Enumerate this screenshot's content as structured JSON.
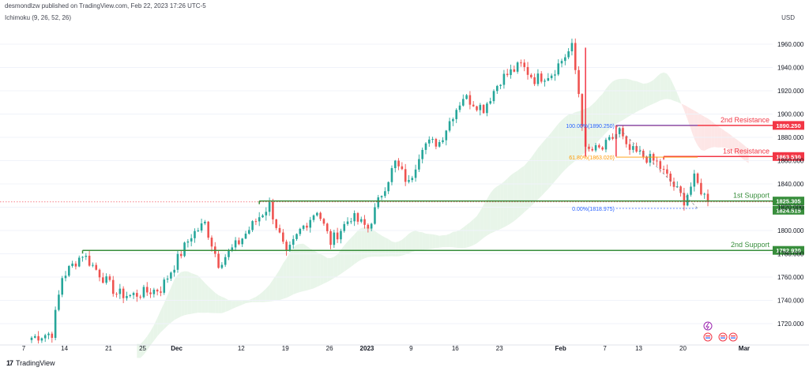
{
  "header": {
    "text": "desmondlzw published on TradingView.com, Feb 22, 2023 17:26 UTC-5"
  },
  "indicator": {
    "label": "Ichimoku (9, 26, 52, 26)"
  },
  "currency": "USD",
  "footer": {
    "brand": "TradingView"
  },
  "colors": {
    "up": "#26a69a",
    "down": "#ef5350",
    "resistance": "#f23645",
    "support": "#388e3c",
    "fib_mid": "#ff9800",
    "fib_label": "#2962ff",
    "cloud_green": "#e8f5e9",
    "cloud_red": "#fde6e6"
  },
  "chart_data": {
    "type": "candlestick",
    "y_axis": {
      "min": 1700,
      "max": 1975,
      "ticks": [
        "1720.000",
        "1740.000",
        "1760.000",
        "1780.000",
        "1800.000",
        "1820.000",
        "1840.000",
        "1860.000",
        "1880.000",
        "1900.000",
        "1920.000",
        "1940.000",
        "1960.000"
      ]
    },
    "x_axis": {
      "labels": [
        {
          "label": "7",
          "i": 0
        },
        {
          "label": "14",
          "i": 12
        },
        {
          "label": "21",
          "i": 25
        },
        {
          "label": "25",
          "i": 35
        },
        {
          "label": "Dec",
          "i": 45
        },
        {
          "label": "12",
          "i": 64
        },
        {
          "label": "19",
          "i": 77
        },
        {
          "label": "26",
          "i": 90
        },
        {
          "label": "2023",
          "i": 101
        },
        {
          "label": "9",
          "i": 114
        },
        {
          "label": "16",
          "i": 127
        },
        {
          "label": "23",
          "i": 140
        },
        {
          "label": "Feb",
          "i": 158
        },
        {
          "label": "7",
          "i": 171
        },
        {
          "label": "13",
          "i": 181
        },
        {
          "label": "20",
          "i": 194
        },
        {
          "label": "Mar",
          "i": 212
        }
      ]
    },
    "levels": [
      {
        "name": "2nd Resistance",
        "value": 1890.25,
        "value_label": "1890.250",
        "kind": "resistance"
      },
      {
        "name": "1st Resistance",
        "value": 1863.53,
        "value_label": "1863.530",
        "kind": "resistance"
      },
      {
        "name": "1st Support",
        "value": 1825.305,
        "value_label": "1825.305",
        "kind": "support"
      },
      {
        "name": "2nd Support",
        "value": 1782.92,
        "value_label": "1782.920",
        "kind": "support"
      }
    ],
    "current_price": {
      "value": 1824.515,
      "label": "1824.515"
    },
    "fibonacci": [
      {
        "label": "100.00%(1890.250)",
        "value": 1890.25
      },
      {
        "label": "61.80%(1863.020)",
        "value": 1863.02
      },
      {
        "label": "0.00%(1818.975)",
        "value": 1818.975
      }
    ],
    "candle_count": 200,
    "path": [
      {
        "i": 0,
        "v": 1708
      },
      {
        "i": 6,
        "v": 1712
      },
      {
        "i": 9,
        "v": 1760
      },
      {
        "i": 15,
        "v": 1780
      },
      {
        "i": 25,
        "v": 1746
      },
      {
        "i": 29,
        "v": 1744
      },
      {
        "i": 38,
        "v": 1750
      },
      {
        "i": 47,
        "v": 1796
      },
      {
        "i": 51,
        "v": 1806
      },
      {
        "i": 55,
        "v": 1772
      },
      {
        "i": 61,
        "v": 1790
      },
      {
        "i": 67,
        "v": 1812
      },
      {
        "i": 70,
        "v": 1822
      },
      {
        "i": 75,
        "v": 1778
      },
      {
        "i": 79,
        "v": 1800
      },
      {
        "i": 84,
        "v": 1818
      },
      {
        "i": 88,
        "v": 1790
      },
      {
        "i": 94,
        "v": 1812
      },
      {
        "i": 99,
        "v": 1802
      },
      {
        "i": 103,
        "v": 1832
      },
      {
        "i": 107,
        "v": 1858
      },
      {
        "i": 111,
        "v": 1840
      },
      {
        "i": 115,
        "v": 1874
      },
      {
        "i": 120,
        "v": 1876
      },
      {
        "i": 124,
        "v": 1900
      },
      {
        "i": 127,
        "v": 1915
      },
      {
        "i": 133,
        "v": 1905
      },
      {
        "i": 138,
        "v": 1930
      },
      {
        "i": 144,
        "v": 1942
      },
      {
        "i": 148,
        "v": 1930
      },
      {
        "i": 153,
        "v": 1935
      },
      {
        "i": 157,
        "v": 1950
      },
      {
        "i": 159,
        "v": 1957
      },
      {
        "i": 161,
        "v": 1918
      },
      {
        "i": 163,
        "v": 1868
      },
      {
        "i": 168,
        "v": 1870
      },
      {
        "i": 173,
        "v": 1886
      },
      {
        "i": 175,
        "v": 1870
      },
      {
        "i": 180,
        "v": 1864
      },
      {
        "i": 184,
        "v": 1858
      },
      {
        "i": 189,
        "v": 1838
      },
      {
        "i": 192,
        "v": 1826
      },
      {
        "i": 195,
        "v": 1844
      },
      {
        "i": 199,
        "v": 1825
      }
    ]
  }
}
